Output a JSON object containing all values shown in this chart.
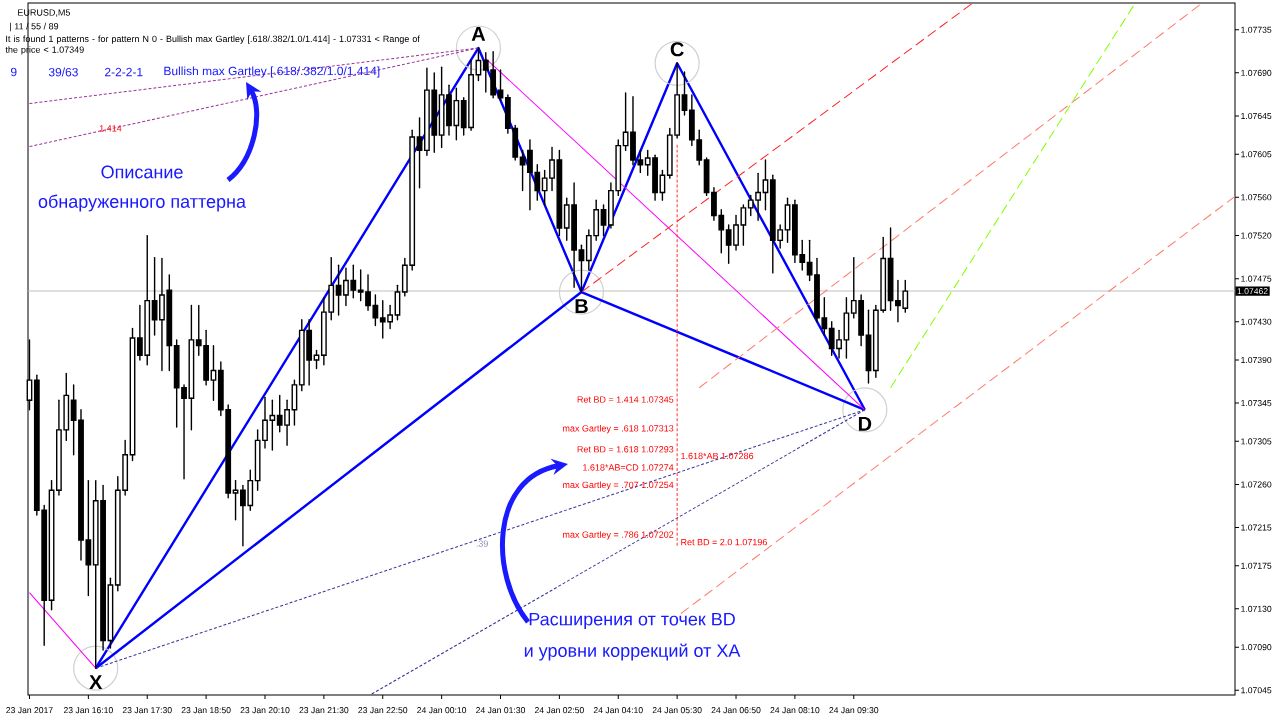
{
  "chart_data": {
    "type": "candlestick",
    "title": "EURUSD,M5",
    "subtitle": "| 11 / 55 / 89",
    "annotations": [
      "It is found 1 patterns - for pattern N 0 - Bullish max Gartley [.618/.382/1.0/1.414] - 1.07331 < Range of the price < 1.07349",
      "9",
      "39/63",
      "2-2-2-1",
      "Bullish max Gartley [.618/.382/1.0/1.414]",
      "Описание",
      "обнаруженного паттерна",
      "Расширения от точек BD",
      "и уровни коррекций от XA",
      {
        "text": "X",
        "x": "2017-01-23T16:20",
        "y": 1.07068
      },
      {
        "text": "A",
        "x": "2017-01-24T01:00",
        "y": 1.07716
      },
      {
        "text": "B",
        "x": "2017-01-24T03:20",
        "y": 1.07461
      },
      {
        "text": "C",
        "x": "2017-01-24T05:30",
        "y": 1.077
      },
      {
        "text": "D",
        "x": "2017-01-24T09:45",
        "y": 1.07338
      },
      {
        "text": "1.414",
        "x": "2017-01-23T16:40",
        "y": 1.07632
      },
      {
        "text": ".39",
        "x": "2017-01-24T01:05",
        "y": 1.07204
      },
      {
        "text": "Ret BD = 1.414 1.07345",
        "x": "2017-01-24T05:30",
        "y": 1.07345
      },
      {
        "text": "max Gartley = .618 1.07313",
        "x": "2017-01-24T05:30",
        "y": 1.07313
      },
      {
        "text": "Ret BD = 1.618 1.07293",
        "x": "2017-01-24T05:30",
        "y": 1.07293
      },
      {
        "text": "1.618*AB 1.07286",
        "x": "2017-01-24T05:30",
        "y": 1.07286
      },
      {
        "text": "1.618*AB=CD 1.07274",
        "x": "2017-01-24T05:30",
        "y": 1.07274
      },
      {
        "text": "max Gartley = .707 1.07254",
        "x": "2017-01-24T05:30",
        "y": 1.07254
      },
      {
        "text": "max Gartley = .786 1.07202",
        "x": "2017-01-24T05:30",
        "y": 1.07202
      },
      {
        "text": "Ret BD = 2.0 1.07196",
        "x": "2017-01-24T05:30",
        "y": 1.07196
      }
    ],
    "x": [
      "2017-01-23T14:50",
      "2017-01-23T15:00",
      "2017-01-23T15:10",
      "2017-01-23T15:20",
      "2017-01-23T15:30",
      "2017-01-23T15:40",
      "2017-01-23T15:50",
      "2017-01-23T16:00",
      "2017-01-23T16:10",
      "2017-01-23T16:20",
      "2017-01-23T16:30",
      "2017-01-23T16:40",
      "2017-01-23T16:50",
      "2017-01-23T17:00",
      "2017-01-23T17:10",
      "2017-01-23T17:20",
      "2017-01-23T17:30",
      "2017-01-23T17:40",
      "2017-01-23T17:50",
      "2017-01-23T18:00",
      "2017-01-23T18:10",
      "2017-01-23T18:20",
      "2017-01-23T18:30",
      "2017-01-23T18:40",
      "2017-01-23T18:50",
      "2017-01-23T19:00",
      "2017-01-23T19:10",
      "2017-01-23T19:20",
      "2017-01-23T19:30",
      "2017-01-23T19:40",
      "2017-01-23T19:50",
      "2017-01-23T20:00",
      "2017-01-23T20:10",
      "2017-01-23T20:20",
      "2017-01-23T20:30",
      "2017-01-23T20:40",
      "2017-01-23T20:50",
      "2017-01-23T21:00",
      "2017-01-23T21:10",
      "2017-01-23T21:20",
      "2017-01-23T21:30",
      "2017-01-23T21:40",
      "2017-01-23T21:50",
      "2017-01-23T22:00",
      "2017-01-23T22:10",
      "2017-01-23T22:20",
      "2017-01-23T22:30",
      "2017-01-23T22:40",
      "2017-01-23T22:50",
      "2017-01-23T23:00",
      "2017-01-23T23:10",
      "2017-01-23T23:20",
      "2017-01-23T23:30",
      "2017-01-23T23:40",
      "2017-01-23T23:50",
      "2017-01-24T00:00",
      "2017-01-24T00:10",
      "2017-01-24T00:20",
      "2017-01-24T00:30",
      "2017-01-24T00:40",
      "2017-01-24T00:50",
      "2017-01-24T01:00",
      "2017-01-24T01:10",
      "2017-01-24T01:20",
      "2017-01-24T01:30",
      "2017-01-24T01:40",
      "2017-01-24T01:50",
      "2017-01-24T02:00",
      "2017-01-24T02:10",
      "2017-01-24T02:20",
      "2017-01-24T02:30",
      "2017-01-24T02:40",
      "2017-01-24T02:50",
      "2017-01-24T03:00",
      "2017-01-24T03:10",
      "2017-01-24T03:20",
      "2017-01-24T03:30",
      "2017-01-24T03:40",
      "2017-01-24T03:50",
      "2017-01-24T04:00",
      "2017-01-24T04:10",
      "2017-01-24T04:20",
      "2017-01-24T04:30",
      "2017-01-24T04:40",
      "2017-01-24T04:50",
      "2017-01-24T05:00",
      "2017-01-24T05:10",
      "2017-01-24T05:20",
      "2017-01-24T05:30",
      "2017-01-24T05:40",
      "2017-01-24T05:50",
      "2017-01-24T06:00",
      "2017-01-24T06:10",
      "2017-01-24T06:20",
      "2017-01-24T06:30",
      "2017-01-24T06:40",
      "2017-01-24T06:50",
      "2017-01-24T07:00",
      "2017-01-24T07:10",
      "2017-01-24T07:20",
      "2017-01-24T07:30",
      "2017-01-24T07:40",
      "2017-01-24T07:50",
      "2017-01-24T08:00",
      "2017-01-24T08:10",
      "2017-01-24T08:20",
      "2017-01-24T08:30",
      "2017-01-24T08:40",
      "2017-01-24T08:50",
      "2017-01-24T09:00",
      "2017-01-24T09:10",
      "2017-01-24T09:20",
      "2017-01-24T09:30",
      "2017-01-24T09:40",
      "2017-01-24T09:50",
      "2017-01-24T10:00",
      "2017-01-24T10:10",
      "2017-01-24T10:20",
      "2017-01-24T10:30",
      "2017-01-24T10:40"
    ],
    "ohlc": [
      [
        1.07348,
        1.07411,
        1.07338,
        1.07369
      ],
      [
        1.07369,
        1.07374,
        1.07228,
        1.07233
      ],
      [
        1.07233,
        1.07238,
        1.07092,
        1.07139
      ],
      [
        1.07139,
        1.07264,
        1.07129,
        1.07254
      ],
      [
        1.07254,
        1.07348,
        1.07249,
        1.07317
      ],
      [
        1.07317,
        1.07376,
        1.07306,
        1.07353
      ],
      [
        1.07348,
        1.07364,
        1.07291,
        1.07327
      ],
      [
        1.07327,
        1.07338,
        1.07181,
        1.07202
      ],
      [
        1.07202,
        1.07264,
        1.07144,
        1.07176
      ],
      [
        1.07176,
        1.07264,
        1.07068,
        1.07243
      ],
      [
        1.07243,
        1.07259,
        1.07087,
        1.07097
      ],
      [
        1.07097,
        1.07162,
        1.07089,
        1.07155
      ],
      [
        1.07155,
        1.07268,
        1.07149,
        1.07254
      ],
      [
        1.07254,
        1.07306,
        1.07249,
        1.07291
      ],
      [
        1.07291,
        1.07423,
        1.07285,
        1.07413
      ],
      [
        1.07413,
        1.07447,
        1.0739,
        1.07395
      ],
      [
        1.07395,
        1.0752,
        1.07385,
        1.07452
      ],
      [
        1.07452,
        1.07497,
        1.07416,
        1.07432
      ],
      [
        1.07432,
        1.07496,
        1.07379,
        1.07458
      ],
      [
        1.07463,
        1.07479,
        1.07379,
        1.07405
      ],
      [
        1.07405,
        1.07411,
        1.0732,
        1.07361
      ],
      [
        1.07361,
        1.07364,
        1.07266,
        1.0735
      ],
      [
        1.0735,
        1.07447,
        1.07317,
        1.07411
      ],
      [
        1.07411,
        1.07447,
        1.07395,
        1.07405
      ],
      [
        1.07405,
        1.07421,
        1.07364,
        1.07369
      ],
      [
        1.07369,
        1.07405,
        1.07348,
        1.07379
      ],
      [
        1.07379,
        1.07388,
        1.07332,
        1.07338
      ],
      [
        1.07338,
        1.07343,
        1.07246,
        1.07251
      ],
      [
        1.07251,
        1.07264,
        1.07223,
        1.07254
      ],
      [
        1.07254,
        1.07259,
        1.07196,
        1.07238
      ],
      [
        1.07238,
        1.07275,
        1.07233,
        1.07264
      ],
      [
        1.07264,
        1.07317,
        1.07254,
        1.07306
      ],
      [
        1.07306,
        1.07351,
        1.07298,
        1.07327
      ],
      [
        1.07327,
        1.07348,
        1.07296,
        1.07332
      ],
      [
        1.07332,
        1.07353,
        1.07315,
        1.07322
      ],
      [
        1.07322,
        1.07348,
        1.07301,
        1.07338
      ],
      [
        1.07338,
        1.07369,
        1.07322,
        1.07364
      ],
      [
        1.07364,
        1.07432,
        1.07358,
        1.07421
      ],
      [
        1.07421,
        1.07432,
        1.07364,
        1.0739
      ],
      [
        1.0739,
        1.074,
        1.07381,
        1.07395
      ],
      [
        1.07395,
        1.07455,
        1.07385,
        1.0744
      ],
      [
        1.0744,
        1.07497,
        1.07432,
        1.07468
      ],
      [
        1.07468,
        1.07489,
        1.07437,
        1.07458
      ],
      [
        1.07458,
        1.07486,
        1.07447,
        1.07473
      ],
      [
        1.07473,
        1.07489,
        1.07455,
        1.07463
      ],
      [
        1.07463,
        1.07484,
        1.07452,
        1.07461
      ],
      [
        1.07461,
        1.07479,
        1.07442,
        1.07447
      ],
      [
        1.07447,
        1.07458,
        1.07426,
        1.07434
      ],
      [
        1.07434,
        1.07452,
        1.07413,
        1.0743
      ],
      [
        1.0743,
        1.07447,
        1.07423,
        1.07437
      ],
      [
        1.07437,
        1.07468,
        1.07432,
        1.07461
      ],
      [
        1.07461,
        1.07496,
        1.07457,
        1.07489
      ],
      [
        1.07489,
        1.0763,
        1.07484,
        1.07623
      ],
      [
        1.07623,
        1.07643,
        1.0757,
        1.07609
      ],
      [
        1.07609,
        1.07695,
        1.07604,
        1.07672
      ],
      [
        1.07672,
        1.0769,
        1.07607,
        1.07625
      ],
      [
        1.07625,
        1.07696,
        1.07612,
        1.07667
      ],
      [
        1.07667,
        1.07677,
        1.07625,
        1.07635
      ],
      [
        1.07635,
        1.07674,
        1.0762,
        1.07661
      ],
      [
        1.07661,
        1.07664,
        1.07625,
        1.07633
      ],
      [
        1.07633,
        1.07703,
        1.0763,
        1.07688
      ],
      [
        1.07688,
        1.07716,
        1.07682,
        1.07703
      ],
      [
        1.07703,
        1.07711,
        1.0767,
        1.07693
      ],
      [
        1.07693,
        1.07712,
        1.07664,
        1.07667
      ],
      [
        1.07672,
        1.07693,
        1.07661,
        1.07664
      ],
      [
        1.07664,
        1.07667,
        1.07627,
        1.07632
      ],
      [
        1.07632,
        1.07635,
        1.07599,
        1.07602
      ],
      [
        1.07602,
        1.07609,
        1.07567,
        1.07594
      ],
      [
        1.07609,
        1.0762,
        1.07547,
        1.07586
      ],
      [
        1.07586,
        1.07594,
        1.07557,
        1.07567
      ],
      [
        1.07567,
        1.07588,
        1.07552,
        1.0758
      ],
      [
        1.0758,
        1.07612,
        1.07567,
        1.07599
      ],
      [
        1.07599,
        1.07609,
        1.0752,
        1.07528
      ],
      [
        1.07528,
        1.07559,
        1.07515,
        1.07552
      ],
      [
        1.07552,
        1.07575,
        1.07466,
        1.07505
      ],
      [
        1.07505,
        1.0751,
        1.07461,
        1.07494
      ],
      [
        1.07494,
        1.07526,
        1.07484,
        1.0752
      ],
      [
        1.0752,
        1.07557,
        1.07515,
        1.07547
      ],
      [
        1.07547,
        1.07552,
        1.0752,
        1.07531
      ],
      [
        1.07531,
        1.07575,
        1.07528,
        1.07567
      ],
      [
        1.07567,
        1.0762,
        1.07562,
        1.07614
      ],
      [
        1.07614,
        1.07669,
        1.07609,
        1.07628
      ],
      [
        1.07628,
        1.07665,
        1.07594,
        1.07599
      ],
      [
        1.07599,
        1.07609,
        1.07586,
        1.07594
      ],
      [
        1.07594,
        1.07609,
        1.07583,
        1.07601
      ],
      [
        1.07601,
        1.07604,
        1.07557,
        1.07565
      ],
      [
        1.07565,
        1.07588,
        1.07557,
        1.07583
      ],
      [
        1.07583,
        1.07632,
        1.0758,
        1.07625
      ],
      [
        1.07625,
        1.077,
        1.07622,
        1.07667
      ],
      [
        1.07667,
        1.07691,
        1.07646,
        1.07651
      ],
      [
        1.07651,
        1.07667,
        1.07614,
        1.0762
      ],
      [
        1.0762,
        1.0763,
        1.07594,
        1.07599
      ],
      [
        1.07599,
        1.07601,
        1.07562,
        1.07565
      ],
      [
        1.07565,
        1.0757,
        1.07536,
        1.07541
      ],
      [
        1.07541,
        1.07547,
        1.07502,
        1.07526
      ],
      [
        1.07526,
        1.07531,
        1.07491,
        1.0751
      ],
      [
        1.0751,
        1.07541,
        1.07505,
        1.07531
      ],
      [
        1.07531,
        1.07552,
        1.0751,
        1.07549
      ],
      [
        1.07549,
        1.07562,
        1.07541,
        1.07557
      ],
      [
        1.07557,
        1.07585,
        1.07536,
        1.07565
      ],
      [
        1.07565,
        1.07599,
        1.07547,
        1.07578
      ],
      [
        1.07578,
        1.07583,
        1.07481,
        1.07515
      ],
      [
        1.07515,
        1.07531,
        1.07507,
        1.07526
      ],
      [
        1.07526,
        1.07559,
        1.07513,
        1.07552
      ],
      [
        1.07552,
        1.07557,
        1.07492,
        1.075
      ],
      [
        1.075,
        1.07515,
        1.07484,
        1.07492
      ],
      [
        1.07492,
        1.07515,
        1.07473,
        1.07479
      ],
      [
        1.07479,
        1.07496,
        1.0743,
        1.07434
      ],
      [
        1.07434,
        1.07455,
        1.07416,
        1.07423
      ],
      [
        1.07423,
        1.0743,
        1.07395,
        1.07402
      ],
      [
        1.07402,
        1.07421,
        1.07392,
        1.07411
      ],
      [
        1.07411,
        1.07455,
        1.07392,
        1.07439
      ],
      [
        1.07439,
        1.07497,
        1.07434,
        1.07452
      ],
      [
        1.07452,
        1.07458,
        1.07405,
        1.07416
      ],
      [
        1.07416,
        1.07442,
        1.07366,
        1.07379
      ],
      [
        1.07379,
        1.07447,
        1.07372,
        1.07442
      ],
      [
        1.07442,
        1.07518,
        1.0744,
        1.07496
      ],
      [
        1.07496,
        1.07528,
        1.07442,
        1.07452
      ],
      [
        1.07452,
        1.07473,
        1.0743,
        1.07447
      ],
      [
        1.07444,
        1.07473,
        1.0744,
        1.07462
      ]
    ],
    "series": [
      {
        "type": "line",
        "color": "#0000ff",
        "marker": "circle",
        "x": [
          "2017-01-23T16:20",
          "2017-01-24T01:00",
          "2017-01-24T03:20",
          "2017-01-24T05:30",
          "2017-01-24T09:45"
        ],
        "values": [
          1.07068,
          1.07716,
          1.07461,
          1.077,
          1.07338
        ]
      },
      {
        "type": "line",
        "color": "#0000ff",
        "x": [
          "2017-01-23T16:20",
          "2017-01-24T03:20",
          "2017-01-24T09:45"
        ],
        "values": [
          1.07068,
          1.07461,
          1.07338
        ]
      },
      {
        "type": "line",
        "color": "#ff00ff",
        "x": [
          "2017-01-24T01:10",
          "2017-01-24T09:45"
        ],
        "values": [
          1.07705,
          1.07338
        ]
      },
      {
        "type": "line",
        "color": "#ff00ff",
        "x": [
          "2017-01-23T14:50",
          "2017-01-23T16:20"
        ],
        "values": [
          1.07147,
          1.07068
        ]
      },
      {
        "type": "line",
        "color": "#993399",
        "line_style": "dotted",
        "x": [
          "2017-01-23T14:50",
          "2017-01-24T01:00"
        ],
        "values": [
          1.07658,
          1.07716
        ]
      },
      {
        "type": "line",
        "color": "#993399",
        "line_style": "dotted",
        "x": [
          "2017-01-23T14:50",
          "2017-01-24T01:00"
        ],
        "values": [
          1.07613,
          1.07716
        ]
      },
      {
        "type": "line",
        "color": "#333399",
        "line_style": "dotted",
        "x": [
          "2017-01-23T16:20",
          "2017-01-24T09:45"
        ],
        "values": [
          1.07068,
          1.07338
        ]
      },
      {
        "type": "line",
        "color": "#333399",
        "line_style": "dotted",
        "x": [
          "2017-01-23T22:35",
          "2017-01-24T09:45"
        ],
        "values": [
          1.07041,
          1.07338
        ]
      },
      {
        "type": "line",
        "color": "#ff2020",
        "line_style": "dashed",
        "x": [
          "2017-01-24T03:20",
          "2017-01-24T12:10"
        ],
        "values": [
          1.07461,
          1.07762
        ]
      },
      {
        "type": "line",
        "color": "#ff7a6a",
        "line_style": "dashed",
        "x": [
          "2017-01-24T06:00",
          "2017-01-24T17:20"
        ],
        "values": [
          1.07361,
          1.07761
        ]
      },
      {
        "type": "line",
        "color": "#ff7a6a",
        "line_style": "dashed",
        "x": [
          "2017-01-24T05:35",
          "2017-01-24T18:08"
        ],
        "values": [
          1.07125,
          1.07561
        ]
      },
      {
        "type": "line",
        "color": "#80ff00",
        "line_style": "dashed",
        "x": [
          "2017-01-24T10:20",
          "2017-01-24T15:50"
        ],
        "values": [
          1.07361,
          1.0776
        ]
      },
      {
        "type": "line",
        "color": "#ff3030",
        "line_style": "dotted",
        "x": [
          "2017-01-24T05:30",
          "2017-01-24T05:30"
        ],
        "values": [
          1.07615,
          1.07196
        ]
      }
    ],
    "xlim": [
      "2017-01-23T14:48",
      "2017-01-24T18:08"
    ],
    "ylim": [
      1.0704,
      1.07763
    ],
    "xticks": [
      {
        "value": "2017-01-23T14:50",
        "label": "23 Jan 2017"
      },
      {
        "value": "2017-01-23T16:10",
        "label": "23 Jan 16:10"
      },
      {
        "value": "2017-01-23T17:30",
        "label": "23 Jan 17:30"
      },
      {
        "value": "2017-01-23T18:50",
        "label": "23 Jan 18:50"
      },
      {
        "value": "2017-01-23T20:10",
        "label": "23 Jan 20:10"
      },
      {
        "value": "2017-01-23T21:30",
        "label": "23 Jan 21:30"
      },
      {
        "value": "2017-01-23T22:50",
        "label": "23 Jan 22:50"
      },
      {
        "value": "2017-01-24T00:10",
        "label": "24 Jan 00:10"
      },
      {
        "value": "2017-01-24T01:30",
        "label": "24 Jan 01:30"
      },
      {
        "value": "2017-01-24T02:50",
        "label": "24 Jan 02:50"
      },
      {
        "value": "2017-01-24T04:10",
        "label": "24 Jan 04:10"
      },
      {
        "value": "2017-01-24T05:30",
        "label": "24 Jan 05:30"
      },
      {
        "value": "2017-01-24T06:50",
        "label": "24 Jan 06:50"
      },
      {
        "value": "2017-01-24T08:10",
        "label": "24 Jan 08:10"
      },
      {
        "value": "2017-01-24T09:30",
        "label": "24 Jan 09:30"
      }
    ],
    "yticks": [
      1.07735,
      {
        "value": 1.0769,
        "label": "1.07690"
      },
      1.07645,
      1.07605,
      {
        "value": 1.0756,
        "label": "1.07560"
      },
      {
        "value": 1.0752,
        "label": "1.07520"
      },
      1.07475,
      {
        "value": 1.0743,
        "label": "1.07430"
      },
      {
        "value": 1.0739,
        "label": "1.07390"
      },
      1.07345,
      1.07305,
      {
        "value": 1.0726,
        "label": "1.07260"
      },
      1.07215,
      1.07175,
      {
        "value": 1.0713,
        "label": "1.07130"
      },
      {
        "value": 1.0709,
        "label": "1.07090"
      },
      1.07045
    ],
    "ref_lines": [
      {
        "axis": "y",
        "value": 1.07462,
        "label": "1.07462",
        "color": "#c0c0c0"
      }
    ]
  }
}
